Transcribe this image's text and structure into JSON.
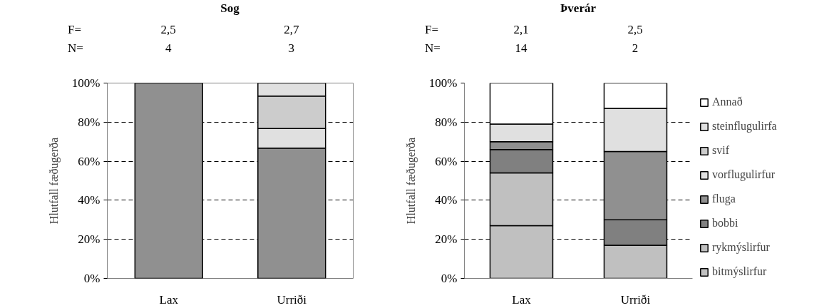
{
  "chart_data": [
    {
      "type": "bar",
      "stacked": true,
      "title": "Sog",
      "ylabel": "Hlutfall fæðugerða",
      "categories": [
        "Lax",
        "Urriði"
      ],
      "series": [
        {
          "color": "#909090",
          "values": [
            100,
            66.7
          ]
        },
        {
          "color": "#e0e0e0",
          "values": [
            null,
            10
          ]
        },
        {
          "color": "#cccccc",
          "values": [
            null,
            16.6
          ]
        },
        {
          "color": "#e0e0e0",
          "values": [
            null,
            6.7
          ]
        }
      ],
      "ylim": [
        0,
        100
      ],
      "yticks": [
        {
          "value": 0,
          "label": "0%"
        },
        {
          "value": 20,
          "label": "20%"
        },
        {
          "value": 40,
          "label": "40%"
        },
        {
          "value": 60,
          "label": "60%"
        },
        {
          "value": 80,
          "label": "80%"
        },
        {
          "value": 100,
          "label": "100%"
        }
      ],
      "grid": "y",
      "legend": false,
      "annotations": [
        "F=",
        "2,5",
        "2,7",
        "N=",
        "4",
        "3"
      ]
    },
    {
      "type": "bar",
      "stacked": true,
      "title": "Þverár",
      "ylabel": "Hlutfall fæðugerða",
      "categories": [
        "Lax",
        "Urriði"
      ],
      "series": [
        {
          "name": "bitmýslirfur",
          "color": "#c0c0c0",
          "values": [
            27,
            17
          ]
        },
        {
          "name": "rykmýslirfur",
          "color": "#c0c0c0",
          "values": [
            27,
            null
          ]
        },
        {
          "name": "bobbi",
          "color": "#808080",
          "values": [
            12,
            13
          ]
        },
        {
          "name": "fluga",
          "color": "#909090",
          "values": [
            4,
            35
          ]
        },
        {
          "name": "vorflugulirfur",
          "color": "#e0e0e0",
          "values": [
            9,
            22
          ]
        },
        {
          "name": "svif",
          "color": "#cccccc",
          "values": [
            null,
            null
          ]
        },
        {
          "name": "steinflugulirfa",
          "color": "#e0e0e0",
          "values": [
            null,
            null
          ]
        },
        {
          "name": "Annað",
          "color": "#ffffff",
          "values": [
            21,
            13
          ]
        }
      ],
      "ylim": [
        0,
        100
      ],
      "yticks": [
        {
          "value": 0,
          "label": "0%"
        },
        {
          "value": 20,
          "label": "20%"
        },
        {
          "value": 40,
          "label": "40%"
        },
        {
          "value": 60,
          "label": "60%"
        },
        {
          "value": 80,
          "label": "80%"
        },
        {
          "value": 100,
          "label": "100%"
        }
      ],
      "grid": "y",
      "legend": "right",
      "annotations": [
        "F=",
        "2,1",
        "2,5",
        "N=",
        "14",
        "2"
      ]
    }
  ]
}
